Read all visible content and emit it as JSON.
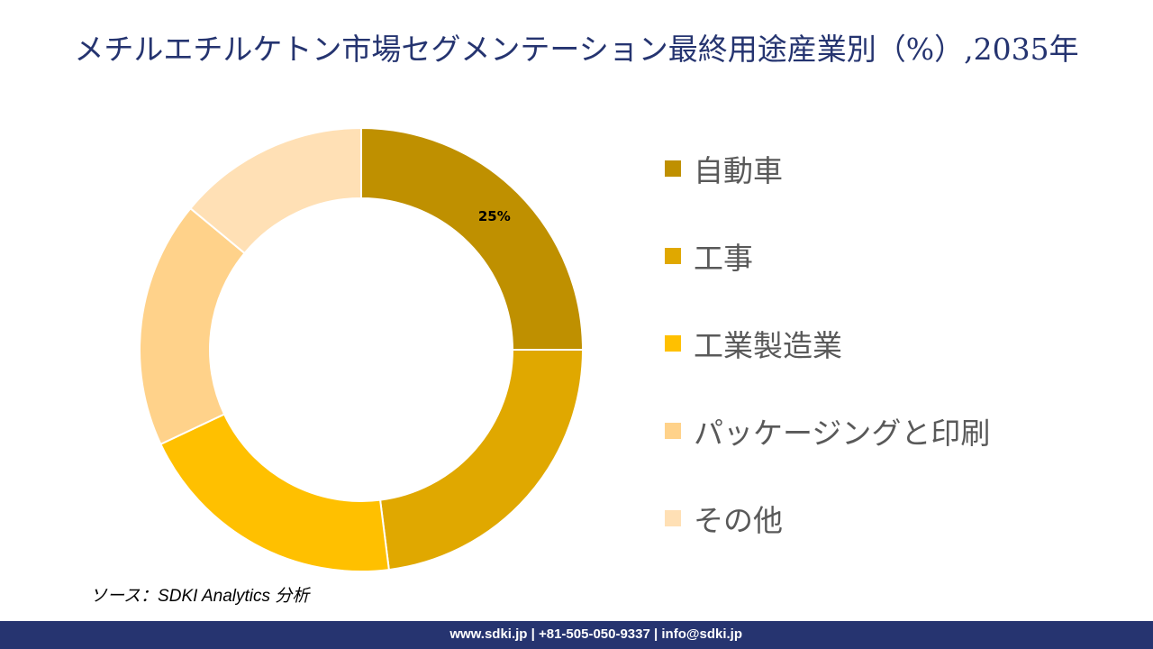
{
  "header": {
    "title": "メチルエチルケトン市場セグメンテーション最終用途産業別（%）,2035年"
  },
  "chart_data": {
    "type": "pie",
    "style": "donut",
    "title": "メチルエチルケトン市場セグメンテーション最終用途産業別（%）,2035年",
    "categories": [
      "自動車",
      "工事",
      "工業製造業",
      "パッケージングと印刷",
      "その他"
    ],
    "values": [
      25,
      23,
      20,
      18,
      14
    ],
    "colors": [
      "#BF9000",
      "#E0A800",
      "#FFC000",
      "#FFD28A",
      "#FFE0B5"
    ],
    "data_labels": [
      "25%",
      "",
      "",
      "",
      ""
    ],
    "legend_position": "right",
    "unit": "%"
  },
  "source": "ソース：SDKI Analytics 分析",
  "footer": {
    "contact": "www.sdki.jp | +81-505-050-9337 | info@sdki.jp"
  }
}
